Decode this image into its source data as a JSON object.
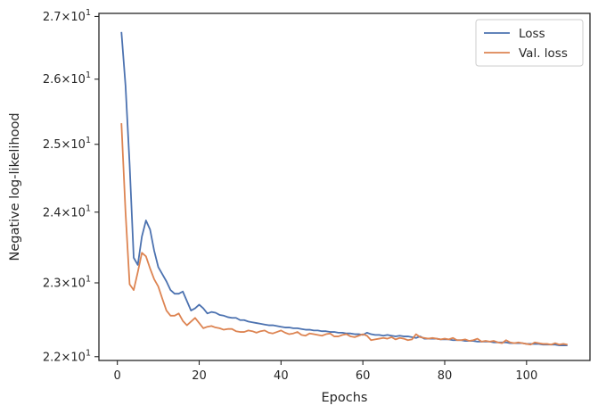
{
  "chart_data": {
    "type": "line",
    "title": "",
    "xlabel": "Epochs",
    "ylabel": "Negative log-likelihood",
    "yscale": "log",
    "xlim": [
      -4.5,
      115.5
    ],
    "ylim": [
      21.95,
      27.05
    ],
    "xticks": [
      0,
      20,
      40,
      60,
      80,
      100
    ],
    "xtick_labels": [
      "0",
      "20",
      "40",
      "60",
      "80",
      "100"
    ],
    "yticks": [
      22,
      23,
      24,
      25,
      26,
      27
    ],
    "ytick_labels": [
      {
        "base": "2.2×10",
        "exp": "1"
      },
      {
        "base": "2.3×10",
        "exp": "1"
      },
      {
        "base": "2.4×10",
        "exp": "1"
      },
      {
        "base": "2.5×10",
        "exp": "1"
      },
      {
        "base": "2.6×10",
        "exp": "1"
      },
      {
        "base": "2.7×10",
        "exp": "1"
      }
    ],
    "grid": false,
    "legend_position": "top-right",
    "series": [
      {
        "name": "Loss",
        "color": "#4c72b0",
        "x": [
          1,
          2,
          3,
          4,
          5,
          6,
          7,
          8,
          9,
          10,
          11,
          12,
          13,
          14,
          15,
          16,
          17,
          18,
          19,
          20,
          21,
          22,
          23,
          24,
          25,
          26,
          27,
          28,
          29,
          30,
          31,
          32,
          33,
          34,
          35,
          36,
          37,
          38,
          39,
          40,
          41,
          42,
          43,
          44,
          45,
          46,
          47,
          48,
          49,
          50,
          51,
          52,
          53,
          54,
          55,
          56,
          57,
          58,
          59,
          60,
          61,
          62,
          63,
          64,
          65,
          66,
          67,
          68,
          69,
          70,
          71,
          72,
          73,
          74,
          75,
          76,
          77,
          78,
          79,
          80,
          81,
          82,
          83,
          84,
          85,
          86,
          87,
          88,
          89,
          90,
          91,
          92,
          93,
          94,
          95,
          96,
          97,
          98,
          99,
          100,
          101,
          102,
          103,
          104,
          105,
          106,
          107,
          108,
          109,
          110
        ],
        "y": [
          26.75,
          25.9,
          24.7,
          23.35,
          23.25,
          23.65,
          23.88,
          23.75,
          23.45,
          23.22,
          23.12,
          23.02,
          22.9,
          22.85,
          22.85,
          22.88,
          22.75,
          22.62,
          22.65,
          22.7,
          22.65,
          22.58,
          22.6,
          22.59,
          22.56,
          22.55,
          22.53,
          22.52,
          22.52,
          22.49,
          22.49,
          22.47,
          22.46,
          22.45,
          22.44,
          22.43,
          22.42,
          22.42,
          22.41,
          22.4,
          22.39,
          22.39,
          22.38,
          22.38,
          22.37,
          22.36,
          22.36,
          22.35,
          22.35,
          22.34,
          22.34,
          22.33,
          22.33,
          22.32,
          22.32,
          22.31,
          22.31,
          22.3,
          22.3,
          22.29,
          22.32,
          22.3,
          22.29,
          22.29,
          22.28,
          22.29,
          22.28,
          22.27,
          22.28,
          22.27,
          22.27,
          22.26,
          22.25,
          22.27,
          22.24,
          22.24,
          22.24,
          22.24,
          22.23,
          22.23,
          22.23,
          22.22,
          22.22,
          22.22,
          22.21,
          22.21,
          22.21,
          22.2,
          22.2,
          22.2,
          22.2,
          22.19,
          22.19,
          22.19,
          22.19,
          22.18,
          22.18,
          22.18,
          22.18,
          22.17,
          22.17,
          22.17,
          22.17,
          22.16,
          22.16,
          22.16,
          22.16,
          22.15,
          22.15,
          22.15
        ]
      },
      {
        "name": "Val. loss",
        "color": "#dd8452",
        "x": [
          1,
          2,
          3,
          4,
          5,
          6,
          7,
          8,
          9,
          10,
          11,
          12,
          13,
          14,
          15,
          16,
          17,
          18,
          19,
          20,
          21,
          22,
          23,
          24,
          25,
          26,
          27,
          28,
          29,
          30,
          31,
          32,
          33,
          34,
          35,
          36,
          37,
          38,
          39,
          40,
          41,
          42,
          43,
          44,
          45,
          46,
          47,
          48,
          49,
          50,
          51,
          52,
          53,
          54,
          55,
          56,
          57,
          58,
          59,
          60,
          61,
          62,
          63,
          64,
          65,
          66,
          67,
          68,
          69,
          70,
          71,
          72,
          73,
          74,
          75,
          76,
          77,
          78,
          79,
          80,
          81,
          82,
          83,
          84,
          85,
          86,
          87,
          88,
          89,
          90,
          91,
          92,
          93,
          94,
          95,
          96,
          97,
          98,
          99,
          100,
          101,
          102,
          103,
          104,
          105,
          106,
          107,
          108,
          109,
          110
        ],
        "y": [
          25.32,
          24.0,
          22.98,
          22.9,
          23.15,
          23.42,
          23.37,
          23.2,
          23.05,
          22.95,
          22.78,
          22.62,
          22.55,
          22.55,
          22.58,
          22.48,
          22.42,
          22.47,
          22.52,
          22.45,
          22.38,
          22.4,
          22.41,
          22.39,
          22.38,
          22.36,
          22.37,
          22.37,
          22.34,
          22.33,
          22.33,
          22.35,
          22.34,
          22.32,
          22.34,
          22.35,
          22.32,
          22.31,
          22.33,
          22.35,
          22.32,
          22.3,
          22.31,
          22.33,
          22.29,
          22.28,
          22.31,
          22.3,
          22.29,
          22.28,
          22.3,
          22.31,
          22.27,
          22.27,
          22.29,
          22.3,
          22.27,
          22.26,
          22.28,
          22.3,
          22.28,
          22.22,
          22.23,
          22.24,
          22.25,
          22.24,
          22.26,
          22.23,
          22.25,
          22.24,
          22.22,
          22.23,
          22.3,
          22.26,
          22.25,
          22.24,
          22.25,
          22.24,
          22.23,
          22.24,
          22.23,
          22.25,
          22.22,
          22.22,
          22.23,
          22.21,
          22.22,
          22.24,
          22.2,
          22.21,
          22.2,
          22.21,
          22.19,
          22.18,
          22.22,
          22.19,
          22.18,
          22.19,
          22.18,
          22.17,
          22.16,
          22.19,
          22.18,
          22.17,
          22.17,
          22.16,
          22.18,
          22.16,
          22.17,
          22.16
        ]
      }
    ]
  }
}
